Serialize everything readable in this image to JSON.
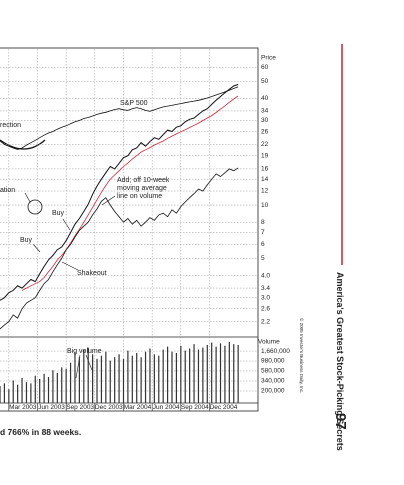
{
  "chart_data": [
    {
      "type": "line",
      "log_scale": true,
      "grid": true,
      "y_label": "Price",
      "ylim": [
        1.8,
        76
      ],
      "yticks": [
        60,
        50,
        40,
        34,
        30,
        26,
        22,
        19,
        16,
        14,
        12,
        10,
        8,
        7,
        6,
        5,
        {
          "value": 4,
          "label": "4.0"
        },
        3.4,
        {
          "value": 3,
          "label": "3.0"
        },
        2.6,
        2.2
      ],
      "xlim": [
        0,
        58.5
      ],
      "xticks": [
        {
          "value": 2,
          "label": "Mar 2003"
        },
        {
          "value": 8.5,
          "label": "Jun 2003"
        },
        {
          "value": 15,
          "label": "Sep 2003"
        },
        {
          "value": 21.5,
          "label": "Dec 2003"
        },
        {
          "value": 28,
          "label": "Mar 2004"
        },
        {
          "value": 34.5,
          "label": "Jun 2004"
        },
        {
          "value": 41,
          "label": "Sep 2004"
        },
        {
          "value": 47.5,
          "label": "Dec 2004"
        }
      ],
      "series": [
        {
          "color": "#111111",
          "values": [
            2.9,
            3.0,
            3.2,
            3.3,
            3.5,
            3.4,
            3.6,
            3.8,
            3.7,
            4.1,
            4.5,
            4.9,
            5.2,
            5.6,
            5.8,
            6.3,
            7.0,
            7.8,
            8.4,
            9.2,
            10.1,
            11.5,
            12.8,
            14.0,
            15.2,
            16.5,
            16.0,
            17.2,
            18.5,
            19.0,
            20.5,
            21.0,
            22.5,
            21.5,
            22.8,
            24.0,
            23.5,
            25.0,
            26.5,
            26.0,
            27.5,
            28.0,
            29.5,
            30.5,
            31.0,
            32.5,
            34.0,
            35.0,
            37.0,
            39.0,
            41.0,
            43.0,
            45.0,
            47.0,
            48.0
          ]
        },
        {
          "color": "#d0283c",
          "values": [
            null,
            null,
            null,
            null,
            null,
            3.3,
            3.4,
            3.5,
            3.6,
            3.7,
            3.9,
            4.2,
            4.5,
            4.9,
            5.2,
            5.6,
            6.1,
            6.7,
            7.3,
            8.0,
            8.8,
            9.7,
            10.7,
            11.8,
            12.9,
            14.0,
            14.8,
            15.6,
            16.5,
            17.3,
            18.2,
            19.0,
            19.9,
            20.5,
            21.1,
            21.8,
            22.4,
            23.0,
            23.8,
            24.5,
            25.2,
            25.9,
            26.6,
            27.4,
            28.2,
            29.0,
            30.0,
            31.0,
            32.0,
            33.3,
            34.8,
            36.3,
            38.0,
            39.7,
            41.3
          ]
        },
        {
          "color": "#111111",
          "values": [
            23,
            22,
            21.5,
            21,
            20.6,
            21,
            21.8,
            22.5,
            23.2,
            24,
            24.8,
            25.5,
            26,
            26.8,
            27.5,
            28,
            28.8,
            29.5,
            30,
            30.8,
            31.2,
            31.8,
            32.5,
            33,
            33.4,
            34,
            34.6,
            35,
            34.5,
            34.2,
            35,
            35.5,
            35,
            34.2,
            33.8,
            34.5,
            35.2,
            35.8,
            36.2,
            36.5,
            37,
            37.4,
            37.8,
            38.2,
            38.6,
            39,
            39.6,
            40.2,
            41,
            41.8,
            42.6,
            43.5,
            44.5,
            45.5,
            46.5
          ]
        },
        {
          "color": "#111111",
          "values": [
            2.0,
            2.1,
            2.2,
            2.4,
            2.3,
            2.6,
            2.8,
            2.9,
            3.0,
            3.3,
            3.6,
            3.8,
            4.2,
            4.6,
            5.0,
            5.6,
            6.0,
            6.6,
            7.2,
            7.6,
            8.0,
            8.8,
            9.5,
            10.5,
            11.0,
            10.0,
            9.2,
            8.6,
            8.0,
            8.4,
            7.8,
            8.2,
            7.6,
            8.0,
            8.5,
            8.2,
            8.8,
            9.0,
            8.6,
            9.4,
            9.0,
            9.8,
            10.4,
            11.0,
            11.6,
            12.3,
            12.0,
            13.0,
            14.0,
            15.0,
            14.5,
            15.2,
            16.0,
            15.6,
            16.2
          ]
        }
      ],
      "annotations": [
        "S&P 500",
        "rection",
        "ation",
        "Buy",
        "Buy",
        "Add; off 10-week",
        "moving average",
        "line on volume",
        "Shakeout"
      ]
    },
    {
      "type": "bar",
      "log_scale": true,
      "grid": true,
      "y_label": "Volume",
      "color": "#333333",
      "ylim": [
        106000,
        3500000
      ],
      "yticks": [
        {
          "value": 1660000,
          "label": "1,660,000"
        },
        {
          "value": 980000,
          "label": "980,000"
        },
        {
          "value": 580000,
          "label": "580,000"
        },
        {
          "value": 340000,
          "label": "340,000"
        },
        {
          "value": 200000,
          "label": "200,000"
        }
      ],
      "xlim": [
        0,
        58.5
      ],
      "values": [
        260000,
        300000,
        220000,
        350000,
        280000,
        400000,
        320000,
        300000,
        450000,
        380000,
        500000,
        420000,
        600000,
        520000,
        700000,
        650000,
        900000,
        1500000,
        1200000,
        1800000,
        2000000,
        1400000,
        1100000,
        1300000,
        1600000,
        1000000,
        1200000,
        1400000,
        1100000,
        1700000,
        1300000,
        1500000,
        1200000,
        1600000,
        1900000,
        1400000,
        1300000,
        1800000,
        2100000,
        1600000,
        1500000,
        2200000,
        1700000,
        1900000,
        2400000,
        1800000,
        2000000,
        2300000,
        2600000,
        2100000,
        2500000,
        2200000,
        2700000,
        2400000,
        2300000
      ],
      "annotations": [
        "Big volume"
      ]
    }
  ],
  "page": {
    "caption": "d 766% in 88 weeks.",
    "running_head": "America's Greatest Stock-Picking Secrets",
    "page_number": "97",
    "copyright": "© 2005 Investor's Business Daily, Inc."
  }
}
